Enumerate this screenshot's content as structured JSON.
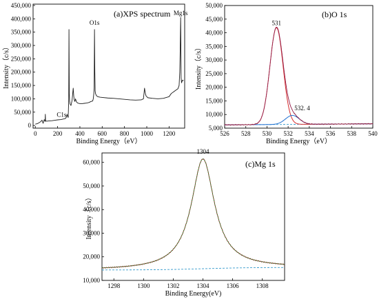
{
  "colors": {
    "axis": "#000000",
    "spectrum_a": "#1a1a1a",
    "raw": "#8b1a1a",
    "fit_main": "#d42a2a",
    "fit_peak": "#1f6fd1",
    "background": "#3399cc",
    "envelope": "#b040b0",
    "fit_green": "#2e8b2e"
  },
  "chart_data": [
    {
      "type": "line",
      "title": "(a)XPS spectrum",
      "xlabel": "Binding Energy（eV）",
      "ylabel": "Intensity（c/s）",
      "xlim": [
        -20,
        1340
      ],
      "ylim": [
        -10000,
        455000
      ],
      "xticks": [
        0,
        200,
        400,
        600,
        800,
        1000,
        1200
      ],
      "yticks": [
        0,
        50000,
        100000,
        150000,
        200000,
        250000,
        300000,
        350000,
        400000,
        450000
      ],
      "ytick_labels": [
        "0",
        "50,000",
        "100,000",
        "150,000",
        "200,000",
        "250,000",
        "300,000",
        "350,000",
        "400,000",
        "450,000"
      ],
      "annotations": [
        {
          "text": "C1s",
          "x": 285,
          "y": 28000
        },
        {
          "text": "O1s",
          "x": 531,
          "y": 372000
        },
        {
          "text": "Mg1s",
          "x": 1304,
          "y": 408000
        }
      ],
      "series": [
        {
          "x": [
            0,
            20,
            40,
            50,
            60,
            70,
            80,
            88,
            90,
            92,
            100,
            120,
            150,
            180,
            200,
            230,
            250,
            270,
            280,
            285,
            290,
            295,
            300,
            302,
            305,
            308,
            312,
            320,
            330,
            340,
            345,
            350,
            355,
            360,
            370,
            380,
            400,
            420,
            440,
            460,
            480,
            500,
            515,
            520,
            525,
            528,
            531,
            534,
            537,
            540,
            548,
            560,
            580,
            600,
            650,
            700,
            750,
            800,
            850,
            900,
            950,
            970,
            980,
            985,
            990,
            995,
            1000,
            1010,
            1050,
            1100,
            1150,
            1200,
            1220,
            1240,
            1260,
            1280,
            1290,
            1296,
            1300,
            1302,
            1304,
            1306,
            1308,
            1312,
            1320,
            1330
          ],
          "y": [
            5000,
            7000,
            12000,
            15000,
            20000,
            8000,
            22000,
            15000,
            42000,
            18000,
            16000,
            17000,
            18000,
            20000,
            21000,
            22000,
            24000,
            26000,
            32000,
            42000,
            35000,
            30000,
            100000,
            360000,
            120000,
            90000,
            80000,
            75000,
            95000,
            140000,
            110000,
            95000,
            90000,
            100000,
            88000,
            84000,
            82000,
            82000,
            83000,
            84000,
            86000,
            90000,
            92000,
            100000,
            120000,
            140000,
            360000,
            200000,
            130000,
            120000,
            112000,
            108000,
            106000,
            105000,
            103000,
            102000,
            100000,
            98000,
            96000,
            95000,
            96000,
            100000,
            140000,
            125000,
            115000,
            110000,
            108000,
            104000,
            102000,
            100000,
            102000,
            108000,
            120000,
            126000,
            132000,
            138000,
            150000,
            200000,
            290000,
            350000,
            405000,
            300000,
            180000,
            160000,
            170000,
            168000
          ]
        }
      ]
    },
    {
      "type": "line",
      "title": "(b)O 1s",
      "xlabel": "Binding Energy（eV）",
      "ylabel": "Intensity（c/s）",
      "xlim": [
        526,
        540
      ],
      "ylim": [
        5000,
        50000
      ],
      "xticks": [
        526,
        528,
        530,
        532,
        534,
        536,
        538,
        540
      ],
      "yticks": [
        5000,
        10000,
        15000,
        20000,
        25000,
        30000,
        35000,
        40000,
        45000,
        50000
      ],
      "ytick_labels": [
        "5,000",
        "10,000",
        "15,000",
        "20,000",
        "25,000",
        "30,000",
        "35,000",
        "40,000",
        "45,000",
        "50,000"
      ],
      "annotations": [
        {
          "text": "531",
          "x": 530.9,
          "y": 42800
        },
        {
          "text": "532. 4",
          "x": 532.4,
          "y": 9500
        }
      ],
      "peaks": [
        {
          "center": 530.9,
          "height": 35500,
          "sigma": 0.62,
          "color_key": "fit_main"
        },
        {
          "center": 532.4,
          "height": 3300,
          "sigma": 0.65,
          "color_key": "fit_peak"
        }
      ],
      "baseline": {
        "start": 6200,
        "end": 6600,
        "color_key": "background"
      },
      "envelope_color_key": "envelope"
    },
    {
      "type": "line",
      "title": "(c)Mg 1s",
      "xlabel": "Binding Energy(eV)",
      "ylabel": "Intensity（c/s）",
      "xlim": [
        1297.2,
        1309.5
      ],
      "ylim": [
        10000,
        64000
      ],
      "xticks": [
        1298,
        1300,
        1302,
        1304,
        1306,
        1308
      ],
      "yticks": [
        10000,
        20000,
        30000,
        40000,
        50000,
        60000
      ],
      "ytick_labels": [
        "10,000",
        "20,000",
        "30,000",
        "40,000",
        "50,000",
        "60,000"
      ],
      "annotations": [
        {
          "text": "1304",
          "x": 1304,
          "y": 62500
        }
      ],
      "peaks": [
        {
          "center": 1304.0,
          "height": 46500,
          "gamma": 0.95,
          "color_key": "fit_green"
        }
      ],
      "baseline": {
        "start": 14400,
        "end": 15500,
        "color_key": "background"
      },
      "raw_color_key": "raw"
    }
  ]
}
